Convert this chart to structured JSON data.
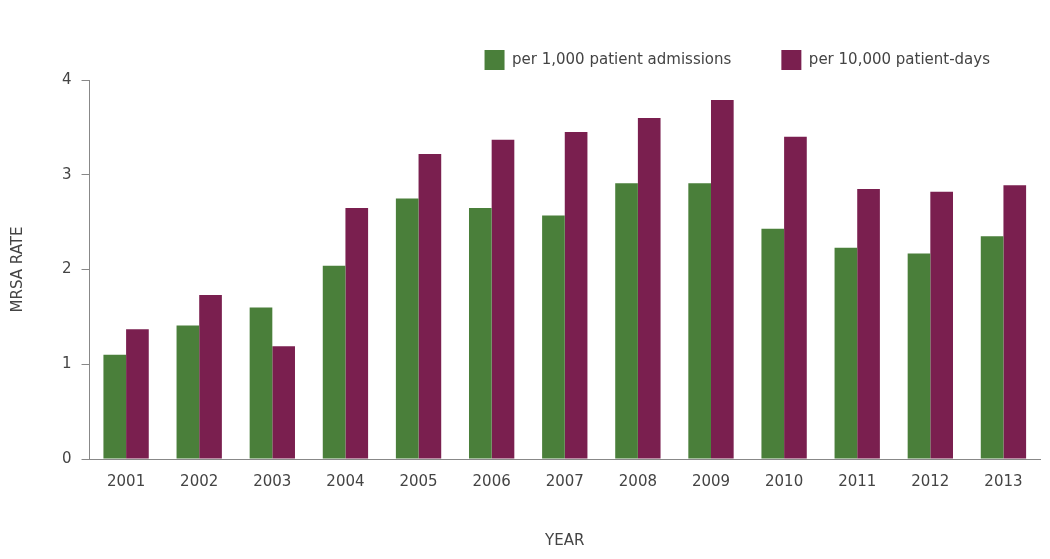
{
  "chart_data": {
    "type": "bar",
    "xlabel": "YEAR",
    "ylabel": "MRSA RATE",
    "categories": [
      "2001",
      "2002",
      "2003",
      "2004",
      "2005",
      "2006",
      "2007",
      "2008",
      "2009",
      "2010",
      "2011",
      "2012",
      "2013"
    ],
    "series": [
      {
        "name": "per 1,000 patient admissions",
        "color": "#4a7f3a",
        "values": [
          1.1,
          1.41,
          1.6,
          2.04,
          2.75,
          2.65,
          2.57,
          2.91,
          2.91,
          2.43,
          2.23,
          2.17,
          2.35
        ]
      },
      {
        "name": "per 10,000 patient-days",
        "color": "#7a1f4f",
        "values": [
          1.37,
          1.73,
          1.19,
          2.65,
          3.22,
          3.37,
          3.45,
          3.6,
          3.79,
          3.4,
          2.85,
          2.82,
          2.89
        ]
      }
    ],
    "ylim": [
      0,
      4
    ],
    "yticks": [
      0,
      1,
      2,
      3,
      4
    ],
    "grid": false,
    "legend": "top right"
  }
}
